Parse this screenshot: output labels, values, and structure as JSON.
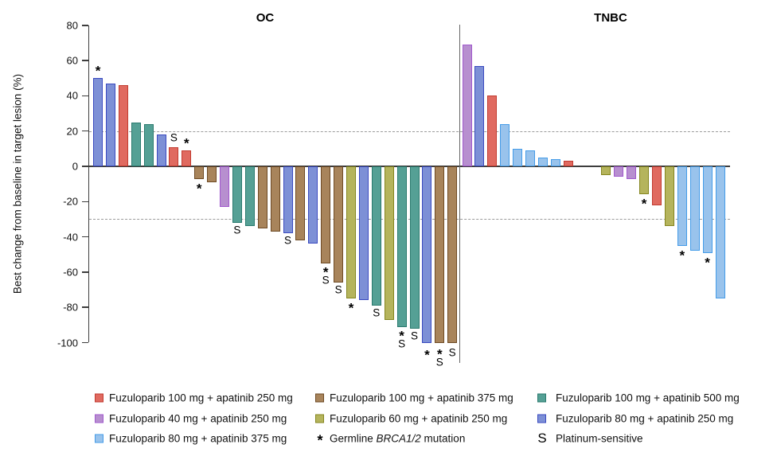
{
  "chart_data": {
    "type": "bar",
    "subtype": "waterfall",
    "ylabel": "Best change from baseline in target lesion (%)",
    "ylim": [
      -100,
      80
    ],
    "yticks": [
      80,
      60,
      40,
      20,
      0,
      -20,
      -40,
      -60,
      -80,
      -100
    ],
    "reference_lines": [
      20,
      -30
    ],
    "grid": "off",
    "legend_position": "bottom",
    "colors": {
      "red": {
        "fill": "#e06a60",
        "stroke": "#c23b30"
      },
      "purple": {
        "fill": "#b78fcf",
        "stroke": "#a159cd"
      },
      "lightblue": {
        "fill": "#99c3ec",
        "stroke": "#459ce8"
      },
      "brown": {
        "fill": "#a8845b",
        "stroke": "#6e4a24"
      },
      "olive": {
        "fill": "#b5b45c",
        "stroke": "#85861f"
      },
      "teal": {
        "fill": "#55a095",
        "stroke": "#2a7a6e"
      },
      "royal": {
        "fill": "#7d90d6",
        "stroke": "#3a4ac0"
      }
    },
    "panels": [
      {
        "title": "OC",
        "bars": [
          {
            "group": "royal",
            "value": 50,
            "mark": "star"
          },
          {
            "group": "royal",
            "value": 47,
            "mark": null
          },
          {
            "group": "red",
            "value": 46,
            "mark": null
          },
          {
            "group": "teal",
            "value": 25,
            "mark": null
          },
          {
            "group": "teal",
            "value": 24,
            "mark": null
          },
          {
            "group": "royal",
            "value": 18,
            "mark": null
          },
          {
            "group": "red",
            "value": 11,
            "mark": "s"
          },
          {
            "group": "red",
            "value": 9,
            "mark": "star"
          },
          {
            "group": "brown",
            "value": -7,
            "mark": "star"
          },
          {
            "group": "brown",
            "value": -9,
            "mark": null
          },
          {
            "group": "purple",
            "value": -23,
            "mark": null
          },
          {
            "group": "teal",
            "value": -32,
            "mark": "s"
          },
          {
            "group": "teal",
            "value": -34,
            "mark": null
          },
          {
            "group": "brown",
            "value": -35,
            "mark": null
          },
          {
            "group": "brown",
            "value": -37,
            "mark": null
          },
          {
            "group": "royal",
            "value": -38,
            "mark": "s"
          },
          {
            "group": "brown",
            "value": -42,
            "mark": null
          },
          {
            "group": "royal",
            "value": -44,
            "mark": null
          },
          {
            "group": "brown",
            "value": -55,
            "mark": "star_s"
          },
          {
            "group": "brown",
            "value": -66,
            "mark": "s"
          },
          {
            "group": "olive",
            "value": -75,
            "mark": "star"
          },
          {
            "group": "royal",
            "value": -76,
            "mark": null
          },
          {
            "group": "teal",
            "value": -79,
            "mark": "s"
          },
          {
            "group": "olive",
            "value": -87,
            "mark": null
          },
          {
            "group": "teal",
            "value": -91,
            "mark": "star_s"
          },
          {
            "group": "teal",
            "value": -92,
            "mark": "s"
          },
          {
            "group": "royal",
            "value": -100,
            "mark": "star"
          },
          {
            "group": "brown",
            "value": -100,
            "mark": "star_s"
          },
          {
            "group": "brown",
            "value": -100,
            "mark": "s"
          }
        ]
      },
      {
        "title": "TNBC",
        "bars": [
          {
            "group": "purple",
            "value": 69,
            "mark": null
          },
          {
            "group": "royal",
            "value": 57,
            "mark": null
          },
          {
            "group": "red",
            "value": 40,
            "mark": null
          },
          {
            "group": "lightblue",
            "value": 24,
            "mark": null
          },
          {
            "group": "lightblue",
            "value": 10,
            "mark": null
          },
          {
            "group": "lightblue",
            "value": 9,
            "mark": null
          },
          {
            "group": "lightblue",
            "value": 5,
            "mark": null
          },
          {
            "group": "lightblue",
            "value": 4,
            "mark": null
          },
          {
            "group": "red",
            "value": 3,
            "mark": null
          },
          {
            "group": "",
            "value": 0,
            "mark": null
          },
          {
            "group": "",
            "value": 0,
            "mark": null
          },
          {
            "group": "olive",
            "value": -5,
            "mark": null
          },
          {
            "group": "purple",
            "value": -6,
            "mark": null
          },
          {
            "group": "purple",
            "value": -7,
            "mark": null
          },
          {
            "group": "olive",
            "value": -16,
            "mark": "star"
          },
          {
            "group": "red",
            "value": -22,
            "mark": null
          },
          {
            "group": "olive",
            "value": -34,
            "mark": null
          },
          {
            "group": "lightblue",
            "value": -45,
            "mark": "star"
          },
          {
            "group": "lightblue",
            "value": -48,
            "mark": null
          },
          {
            "group": "lightblue",
            "value": -49,
            "mark": "star"
          },
          {
            "group": "lightblue",
            "value": -75,
            "mark": null
          }
        ]
      }
    ],
    "legend": [
      {
        "type": "swatch",
        "group": "red",
        "label": "Fuzuloparib 100 mg + apatinib 250 mg",
        "col": 0,
        "row": 0
      },
      {
        "type": "swatch",
        "group": "brown",
        "label": "Fuzuloparib 100 mg + apatinib 375 mg",
        "col": 1,
        "row": 0
      },
      {
        "type": "swatch",
        "group": "teal",
        "label": "Fuzuloparib 100 mg + apatinib 500 mg",
        "col": 2,
        "row": 0
      },
      {
        "type": "swatch",
        "group": "purple",
        "label": "Fuzuloparib 40 mg + apatinib 250 mg",
        "col": 0,
        "row": 1
      },
      {
        "type": "swatch",
        "group": "olive",
        "label": "Fuzuloparib 60 mg + apatinib 250 mg",
        "col": 1,
        "row": 1
      },
      {
        "type": "swatch",
        "group": "royal",
        "label": "Fuzuloparib 80 mg + apatinib 250 mg",
        "col": 2,
        "row": 1
      },
      {
        "type": "swatch",
        "group": "lightblue",
        "label": "Fuzuloparib 80 mg + apatinib 375 mg",
        "col": 0,
        "row": 2
      },
      {
        "type": "symbol",
        "symbol": "*",
        "label_parts": [
          {
            "t": "Germline ",
            "i": false
          },
          {
            "t": "BRCA1/2",
            "i": true
          },
          {
            "t": " mutation",
            "i": false
          }
        ],
        "label": "Germline BRCA1/2 mutation",
        "col": 1,
        "row": 2
      },
      {
        "type": "symbol",
        "symbol": "S",
        "label_parts": [
          {
            "t": "Platinum-sensitive",
            "i": false
          }
        ],
        "label": "Platinum-sensitive",
        "col": 2,
        "row": 2
      }
    ]
  }
}
